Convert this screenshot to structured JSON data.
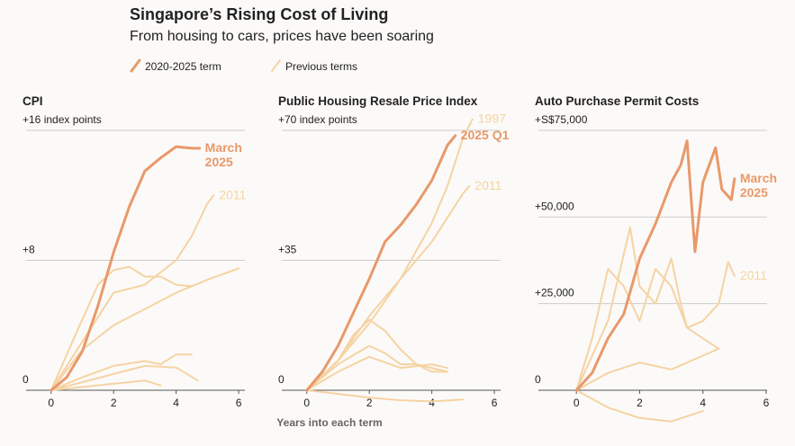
{
  "title": "Singapore’s Rising Cost of Living",
  "subtitle": "From housing to cars, prices have been soaring",
  "legend": [
    {
      "name": "2020-2025 term",
      "color": "#e8996a"
    },
    {
      "name": "Previous terms",
      "color": "#f5d3a3"
    }
  ],
  "x_axis_label": "Years into each term",
  "chart_data": [
    {
      "type": "line",
      "title": "CPI",
      "xlim": [
        -0.8,
        6.2
      ],
      "xticks": [
        0,
        2,
        4,
        6
      ],
      "ylim": [
        -0.5,
        16
      ],
      "yticks": [
        0,
        {
          "value": 8,
          "label": "+8"
        },
        {
          "value": 16,
          "label": "+16 index points"
        }
      ],
      "grid": true,
      "series": [
        {
          "color": "#f5d3a3",
          "x": [
            0,
            1,
            2,
            3,
            4,
            4.5,
            5,
            5.2
          ],
          "values": [
            0,
            3,
            6,
            6.5,
            8,
            9.5,
            11.5,
            12
          ],
          "label_lines": [
            "2011"
          ]
        },
        {
          "color": "#f5d3a3",
          "x": [
            0,
            1,
            2,
            3,
            4,
            5,
            6
          ],
          "values": [
            0,
            2.5,
            4,
            5,
            6,
            6.8,
            7.5
          ]
        },
        {
          "color": "#f5d3a3",
          "x": [
            0,
            0.8,
            1.5,
            2,
            2.5,
            3,
            3.5,
            4,
            4.5
          ],
          "values": [
            0,
            3.5,
            6.5,
            7.4,
            7.6,
            7,
            7,
            6.5,
            6.4
          ]
        },
        {
          "color": "#f5d3a3",
          "x": [
            0,
            1,
            2,
            3,
            3.5,
            4,
            4.5
          ],
          "values": [
            0,
            0.8,
            1.5,
            1.8,
            1.6,
            2.2,
            2.2
          ]
        },
        {
          "color": "#f5d3a3",
          "x": [
            0,
            1,
            2,
            3,
            4,
            4.7
          ],
          "values": [
            0,
            0.5,
            1,
            1.5,
            1.4,
            0.6
          ]
        },
        {
          "color": "#f5d3a3",
          "x": [
            0,
            1,
            2,
            3,
            3.5
          ],
          "values": [
            0,
            0.2,
            0.4,
            0.6,
            0.3
          ]
        },
        {
          "color": "#e8996a",
          "main": true,
          "x": [
            0,
            0.5,
            1,
            1.5,
            2,
            2.5,
            3,
            3.5,
            4,
            4.5,
            4.75
          ],
          "values": [
            0,
            0.8,
            2.4,
            5.2,
            8.5,
            11.3,
            13.5,
            14.3,
            15,
            14.9,
            14.9
          ],
          "label_lines": [
            "March",
            "2025"
          ]
        }
      ]
    },
    {
      "type": "line",
      "title": "Public Housing Resale Price Index",
      "xlim": [
        -0.8,
        6.2
      ],
      "xticks": [
        0,
        2,
        4,
        6
      ],
      "ylim": [
        -4,
        70
      ],
      "yticks": [
        0,
        {
          "value": 35,
          "label": "+35"
        },
        {
          "value": 70,
          "label": "+70 index points"
        }
      ],
      "grid": true,
      "series": [
        {
          "color": "#f5d3a3",
          "x": [
            0,
            1,
            2,
            3,
            4,
            4.5,
            5,
            5.3
          ],
          "values": [
            0,
            8,
            20,
            30,
            45,
            55,
            68,
            73
          ],
          "label_lines": [
            "1997"
          ]
        },
        {
          "color": "#f5d3a3",
          "x": [
            0,
            1,
            2,
            3,
            4,
            5,
            5.2
          ],
          "values": [
            0,
            8,
            18,
            30,
            40,
            53,
            55
          ],
          "label_lines": [
            "2011"
          ]
        },
        {
          "color": "#f5d3a3",
          "x": [
            0,
            1,
            1.5,
            2,
            2.5,
            3,
            3.5,
            4,
            4.5
          ],
          "values": [
            0,
            8,
            15,
            19,
            16,
            11,
            7,
            5,
            5
          ]
        },
        {
          "color": "#f5d3a3",
          "x": [
            0,
            1,
            2,
            2.5,
            3,
            3.5,
            4.5
          ],
          "values": [
            0,
            7,
            12,
            10,
            7,
            7,
            5
          ]
        },
        {
          "color": "#f5d3a3",
          "x": [
            0,
            1,
            2,
            3,
            4,
            4.5
          ],
          "values": [
            0,
            5,
            9,
            6,
            7,
            6
          ]
        },
        {
          "color": "#f5d3a3",
          "x": [
            0,
            1,
            2,
            3,
            4,
            5
          ],
          "values": [
            0,
            -1,
            -2,
            -2.7,
            -3,
            -2.5
          ]
        },
        {
          "color": "#e8996a",
          "main": true,
          "x": [
            0,
            0.5,
            1,
            1.5,
            2,
            2.5,
            3,
            3.5,
            4,
            4.5,
            4.75
          ],
          "values": [
            0,
            5,
            12,
            21,
            30,
            40,
            44.5,
            50,
            56.5,
            66,
            68.6
          ],
          "label_lines": [
            "2025 Q1"
          ]
        }
      ]
    },
    {
      "type": "line",
      "title": "Auto Purchase Permit Costs",
      "xlim": [
        -1.2,
        6.2
      ],
      "xticks": [
        0,
        2,
        4,
        6
      ],
      "ylim": [
        -10000,
        75000
      ],
      "yticks": [
        0,
        {
          "value": 25000,
          "label": "+25,000"
        },
        {
          "value": 50000,
          "label": "+50,000"
        },
        {
          "value": 75000,
          "label": "+S$75,000"
        }
      ],
      "grid": true,
      "series": [
        {
          "color": "#f5d3a3",
          "x": [
            0,
            0.5,
            1,
            1.5,
            2,
            2.5,
            3,
            3.5,
            4,
            4.5,
            4.8,
            5
          ],
          "values": [
            0,
            15000,
            35000,
            30000,
            20000,
            35000,
            30000,
            18000,
            20000,
            25000,
            37000,
            33000
          ],
          "label_lines": [
            "2011"
          ]
        },
        {
          "color": "#f5d3a3",
          "x": [
            0,
            1,
            1.7,
            2,
            2.5,
            3,
            3.3,
            3.5,
            4,
            4.5
          ],
          "values": [
            0,
            20000,
            47000,
            30000,
            25000,
            38000,
            25000,
            18000,
            15000,
            12000
          ]
        },
        {
          "color": "#f5d3a3",
          "x": [
            0,
            1,
            2,
            3,
            4,
            4.5
          ],
          "values": [
            0,
            5000,
            8000,
            6000,
            10000,
            12000
          ]
        },
        {
          "color": "#f5d3a3",
          "x": [
            0,
            1,
            2,
            3,
            4
          ],
          "values": [
            0,
            -5000,
            -8000,
            -9000,
            -6000
          ]
        },
        {
          "color": "#e8996a",
          "main": true,
          "x": [
            0,
            0.5,
            1,
            1.5,
            2,
            2.5,
            3,
            3.3,
            3.5,
            3.75,
            4,
            4.4,
            4.6,
            4.9,
            5
          ],
          "values": [
            0,
            5000,
            15000,
            22000,
            38000,
            48000,
            60000,
            65000,
            72000,
            40000,
            60000,
            70000,
            58000,
            55000,
            61000
          ],
          "label_lines": [
            "March",
            "2025"
          ]
        }
      ]
    }
  ]
}
